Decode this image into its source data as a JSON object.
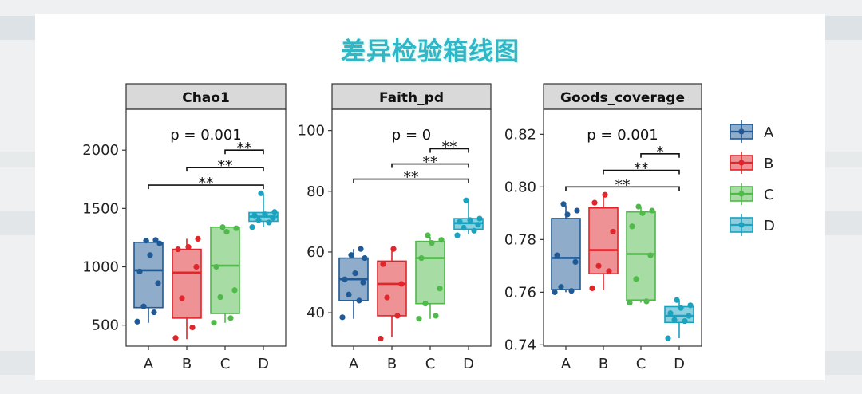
{
  "page": {
    "title": "差异检验箱线图"
  },
  "colors": {
    "A": "#1f5a96",
    "B": "#e0252b",
    "C": "#4fb94a",
    "D": "#1aa2bf"
  },
  "legend": {
    "items": [
      {
        "key": "A",
        "label": "A"
      },
      {
        "key": "B",
        "label": "B"
      },
      {
        "key": "C",
        "label": "C"
      },
      {
        "key": "D",
        "label": "D"
      }
    ]
  },
  "chart_data": [
    {
      "type": "box",
      "title": "Chao1",
      "categories": [
        "A",
        "B",
        "C",
        "D"
      ],
      "ylim": [
        320,
        2350
      ],
      "yticks": [
        500,
        1000,
        1500,
        2000
      ],
      "ytick_labels": [
        "500",
        "1000",
        "1500",
        "2000"
      ],
      "p_label": "p = 0.001",
      "boxes": [
        {
          "group": "A",
          "whisker_low": 520,
          "q1": 650,
          "median": 970,
          "q3": 1210,
          "whisker_high": 1230
        },
        {
          "group": "B",
          "whisker_low": 380,
          "q1": 560,
          "median": 950,
          "q3": 1150,
          "whisker_high": 1240
        },
        {
          "group": "C",
          "whisker_low": 520,
          "q1": 600,
          "median": 1010,
          "q3": 1340,
          "whisker_high": 1340
        },
        {
          "group": "D",
          "whisker_low": 1340,
          "q1": 1390,
          "median": 1430,
          "q3": 1465,
          "whisker_high": 1630
        }
      ],
      "points": {
        "A": [
          530,
          610,
          660,
          860,
          960,
          1100,
          1200,
          1225,
          1230
        ],
        "B": [
          390,
          480,
          730,
          1000,
          1150,
          1170,
          1240
        ],
        "C": [
          520,
          560,
          740,
          800,
          1000,
          1300,
          1330,
          1340
        ],
        "D": [
          1340,
          1380,
          1400,
          1420,
          1440,
          1450,
          1470,
          1630
        ]
      },
      "comparisons": [
        {
          "from": "A",
          "to": "D",
          "y": 1700,
          "label": "**"
        },
        {
          "from": "B",
          "to": "D",
          "y": 1850,
          "label": "**"
        },
        {
          "from": "C",
          "to": "D",
          "y": 2000,
          "label": "**"
        }
      ],
      "xlabel": "",
      "ylabel": ""
    },
    {
      "type": "box",
      "title": "Faith_pd",
      "categories": [
        "A",
        "B",
        "C",
        "D"
      ],
      "ylim": [
        29,
        107
      ],
      "yticks": [
        40,
        60,
        80,
        100
      ],
      "ytick_labels": [
        "40",
        "60",
        "80",
        "100"
      ],
      "p_label": "p = 0",
      "boxes": [
        {
          "group": "A",
          "whisker_low": 38,
          "q1": 44,
          "median": 51,
          "q3": 58,
          "whisker_high": 61
        },
        {
          "group": "B",
          "whisker_low": 32,
          "q1": 39,
          "median": 49.5,
          "q3": 57,
          "whisker_high": 61
        },
        {
          "group": "C",
          "whisker_low": 38,
          "q1": 43,
          "median": 58,
          "q3": 63.5,
          "whisker_high": 65
        },
        {
          "group": "D",
          "whisker_low": 66,
          "q1": 67.5,
          "median": 69.5,
          "q3": 71,
          "whisker_high": 77
        }
      ],
      "points": {
        "A": [
          38.5,
          44,
          46,
          50,
          51,
          53,
          58,
          59,
          61
        ],
        "B": [
          31.5,
          39,
          45,
          49.5,
          56,
          61
        ],
        "C": [
          38,
          39,
          43,
          48,
          58,
          63,
          64,
          65.5
        ],
        "D": [
          65.5,
          67,
          68,
          69,
          70,
          70.5,
          71,
          77
        ]
      },
      "comparisons": [
        {
          "from": "A",
          "to": "D",
          "y": 84,
          "label": "**"
        },
        {
          "from": "B",
          "to": "D",
          "y": 89,
          "label": "**"
        },
        {
          "from": "C",
          "to": "D",
          "y": 94,
          "label": "**"
        }
      ],
      "xlabel": "",
      "ylabel": ""
    },
    {
      "type": "box",
      "title": "Goods_coverage",
      "categories": [
        "A",
        "B",
        "C",
        "D"
      ],
      "ylim": [
        0.7395,
        0.8295
      ],
      "yticks": [
        0.74,
        0.76,
        0.78,
        0.8,
        0.82
      ],
      "ytick_labels": [
        "0.74",
        "0.76",
        "0.78",
        "0.80",
        "0.82"
      ],
      "p_label": "p = 0.001",
      "boxes": [
        {
          "group": "A",
          "whisker_low": 0.76,
          "q1": 0.761,
          "median": 0.773,
          "q3": 0.788,
          "whisker_high": 0.793
        },
        {
          "group": "B",
          "whisker_low": 0.761,
          "q1": 0.767,
          "median": 0.776,
          "q3": 0.792,
          "whisker_high": 0.797
        },
        {
          "group": "C",
          "whisker_low": 0.756,
          "q1": 0.757,
          "median": 0.7745,
          "q3": 0.7905,
          "whisker_high": 0.7925
        },
        {
          "group": "D",
          "whisker_low": 0.7425,
          "q1": 0.7485,
          "median": 0.751,
          "q3": 0.7545,
          "whisker_high": 0.757
        }
      ],
      "points": {
        "A": [
          0.76,
          0.7605,
          0.762,
          0.7715,
          0.774,
          0.7895,
          0.791,
          0.7935
        ],
        "B": [
          0.7615,
          0.768,
          0.77,
          0.783,
          0.794,
          0.797
        ],
        "C": [
          0.756,
          0.7565,
          0.765,
          0.774,
          0.785,
          0.79,
          0.791,
          0.7925
        ],
        "D": [
          0.7425,
          0.749,
          0.7495,
          0.751,
          0.752,
          0.754,
          0.755,
          0.757
        ]
      },
      "comparisons": [
        {
          "from": "A",
          "to": "D",
          "y": 0.8,
          "label": "**"
        },
        {
          "from": "B",
          "to": "D",
          "y": 0.8063,
          "label": "**"
        },
        {
          "from": "C",
          "to": "D",
          "y": 0.8126,
          "label": "*"
        }
      ],
      "xlabel": "",
      "ylabel": ""
    }
  ]
}
